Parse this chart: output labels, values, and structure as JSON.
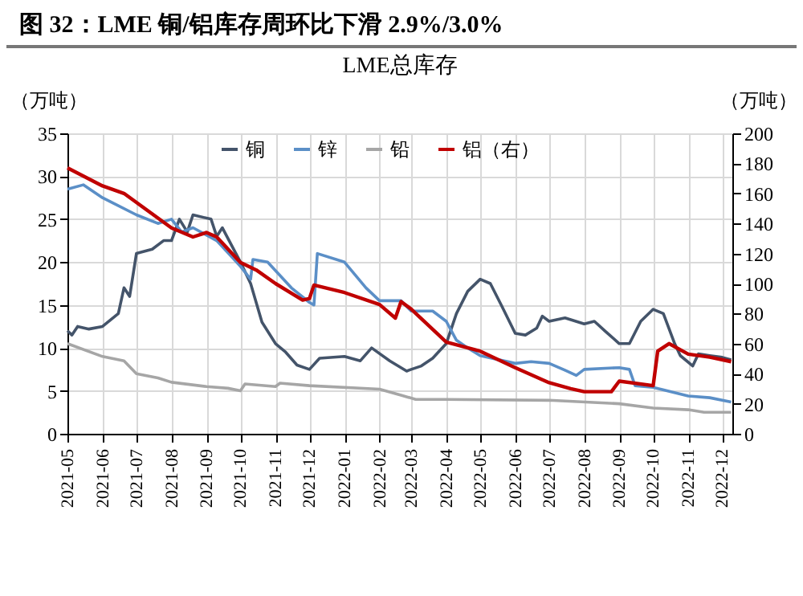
{
  "chart_data": {
    "type": "line",
    "title": "图 32：LME 铜/铝库存周环比下滑 2.9%/3.0%",
    "subtitle": "LME总库存",
    "ylabel": "（万吨）",
    "y2label": "（万吨）",
    "xlim": [
      "2021-05-01",
      "2022-12-10"
    ],
    "xticks": [
      "2021-05",
      "2021-06",
      "2021-07",
      "2021-08",
      "2021-09",
      "2021-10",
      "2021-11",
      "2021-12",
      "2022-01",
      "2022-02",
      "2022-03",
      "2022-04",
      "2022-05",
      "2022-06",
      "2022-07",
      "2022-08",
      "2022-09",
      "2022-10",
      "2022-11",
      "2022-12"
    ],
    "ylim": [
      0,
      35
    ],
    "yticks": [
      0,
      5,
      10,
      15,
      20,
      25,
      30,
      35
    ],
    "y2lim": [
      0,
      200
    ],
    "y2ticks": [
      0,
      20,
      40,
      60,
      80,
      100,
      120,
      140,
      160,
      180,
      200
    ],
    "grid": true,
    "legend": "top",
    "line_style": "solid",
    "series": [
      {
        "name": "铜",
        "color": "#44546a",
        "x": [
          "2021-05-01",
          "2021-05-05",
          "2021-05-10",
          "2021-05-20",
          "2021-06-01",
          "2021-06-15",
          "2021-06-20",
          "2021-06-25",
          "2021-07-01",
          "2021-07-15",
          "2021-07-25",
          "2021-08-01",
          "2021-08-08",
          "2021-08-15",
          "2021-08-20",
          "2021-09-05",
          "2021-09-10",
          "2021-09-15",
          "2021-10-01",
          "2021-10-10",
          "2021-10-20",
          "2021-11-01",
          "2021-11-10",
          "2021-11-20",
          "2021-12-01",
          "2021-12-10",
          "2022-01-01",
          "2022-01-15",
          "2022-01-25",
          "2022-02-10",
          "2022-02-25",
          "2022-03-01",
          "2022-03-10",
          "2022-03-20",
          "2022-04-01",
          "2022-04-10",
          "2022-04-20",
          "2022-05-01",
          "2022-05-10",
          "2022-05-20",
          "2022-06-01",
          "2022-06-10",
          "2022-06-20",
          "2022-06-25",
          "2022-07-01",
          "2022-07-15",
          "2022-08-01",
          "2022-08-10",
          "2022-08-20",
          "2022-09-01",
          "2022-09-10",
          "2022-09-20",
          "2022-10-01",
          "2022-10-10",
          "2022-10-20",
          "2022-10-25",
          "2022-11-05",
          "2022-11-10",
          "2022-11-20",
          "2022-12-01",
          "2022-12-09"
        ],
        "values": [
          12,
          11.5,
          12.5,
          12.2,
          12.5,
          14,
          17,
          16,
          21,
          21.5,
          22.5,
          22.5,
          25,
          23.5,
          25.5,
          25,
          23,
          24,
          20,
          17.5,
          13,
          10.5,
          9.5,
          8,
          7.5,
          8.8,
          9,
          8.5,
          10,
          8.5,
          7.3,
          7.5,
          7.9,
          8.8,
          10.5,
          14,
          16.6,
          18,
          17.5,
          14.9,
          11.7,
          11.5,
          12.3,
          13.7,
          13.1,
          13.5,
          12.8,
          13.1,
          11.9,
          10.5,
          10.5,
          13.1,
          14.5,
          14,
          10.5,
          9.1,
          7.9,
          9.3,
          9.1,
          8.9,
          8.6
        ]
      },
      {
        "name": "锌",
        "color": "#5b8fc7",
        "x": [
          "2021-05-01",
          "2021-05-15",
          "2021-06-01",
          "2021-07-01",
          "2021-07-20",
          "2021-08-01",
          "2021-08-10",
          "2021-08-20",
          "2021-09-10",
          "2021-10-01",
          "2021-10-10",
          "2021-10-12",
          "2021-10-25",
          "2021-11-15",
          "2021-12-01",
          "2021-12-05",
          "2021-12-08",
          "2022-01-01",
          "2022-01-20",
          "2022-02-01",
          "2022-02-20",
          "2022-03-01",
          "2022-03-20",
          "2022-04-01",
          "2022-04-10",
          "2022-04-20",
          "2022-05-01",
          "2022-06-01",
          "2022-06-15",
          "2022-07-01",
          "2022-07-15",
          "2022-07-25",
          "2022-08-01",
          "2022-09-01",
          "2022-09-10",
          "2022-09-15",
          "2022-10-01",
          "2022-11-01",
          "2022-11-20",
          "2022-12-09"
        ],
        "values": [
          28.5,
          29,
          27.5,
          25.5,
          24.5,
          25,
          23.5,
          24,
          22.5,
          19.5,
          18,
          20.3,
          20,
          17,
          15.3,
          15,
          21,
          20,
          17,
          15.5,
          15.5,
          14.3,
          14.3,
          13.1,
          10.9,
          10,
          9.1,
          8.2,
          8.4,
          8.2,
          7.4,
          6.8,
          7.5,
          7.7,
          7.5,
          5.6,
          5.4,
          4.4,
          4.2,
          3.7
        ]
      },
      {
        "name": "铅",
        "color": "#a6a6a6",
        "x": [
          "2021-05-01",
          "2021-06-01",
          "2021-06-20",
          "2021-07-01",
          "2021-07-20",
          "2021-08-01",
          "2021-09-01",
          "2021-09-20",
          "2021-10-01",
          "2021-10-05",
          "2021-11-01",
          "2021-11-05",
          "2021-12-01",
          "2022-02-01",
          "2022-02-20",
          "2022-03-05",
          "2022-04-01",
          "2022-07-01",
          "2022-09-01",
          "2022-10-01",
          "2022-11-01",
          "2022-11-15",
          "2022-12-09"
        ],
        "values": [
          10.5,
          9,
          8.5,
          7,
          6.5,
          6,
          5.5,
          5.3,
          5,
          5.8,
          5.5,
          5.9,
          5.6,
          5.2,
          4.5,
          4,
          4,
          3.9,
          3.5,
          3,
          2.8,
          2.5,
          2.5
        ]
      },
      {
        "name": "铝（右）",
        "color": "#c00000",
        "axis": "y2",
        "x": [
          "2021-05-01",
          "2021-06-01",
          "2021-06-20",
          "2021-07-01",
          "2021-08-01",
          "2021-08-20",
          "2021-09-01",
          "2021-09-10",
          "2021-10-01",
          "2021-10-15",
          "2021-11-01",
          "2021-11-25",
          "2021-12-01",
          "2021-12-05",
          "2022-01-01",
          "2022-02-01",
          "2022-02-15",
          "2022-02-20",
          "2022-03-01",
          "2022-04-01",
          "2022-05-01",
          "2022-06-01",
          "2022-07-01",
          "2022-07-20",
          "2022-08-01",
          "2022-08-25",
          "2022-09-01",
          "2022-10-01",
          "2022-10-05",
          "2022-10-15",
          "2022-11-01",
          "2022-11-20",
          "2022-12-09"
        ],
        "values": [
          177,
          165,
          160,
          154,
          137,
          131,
          134,
          131,
          114,
          109,
          100,
          89,
          90,
          99,
          94,
          86,
          77,
          88,
          83,
          61,
          55,
          44,
          34,
          30,
          28,
          28,
          35,
          32,
          55,
          60,
          53,
          51,
          48
        ]
      }
    ]
  }
}
